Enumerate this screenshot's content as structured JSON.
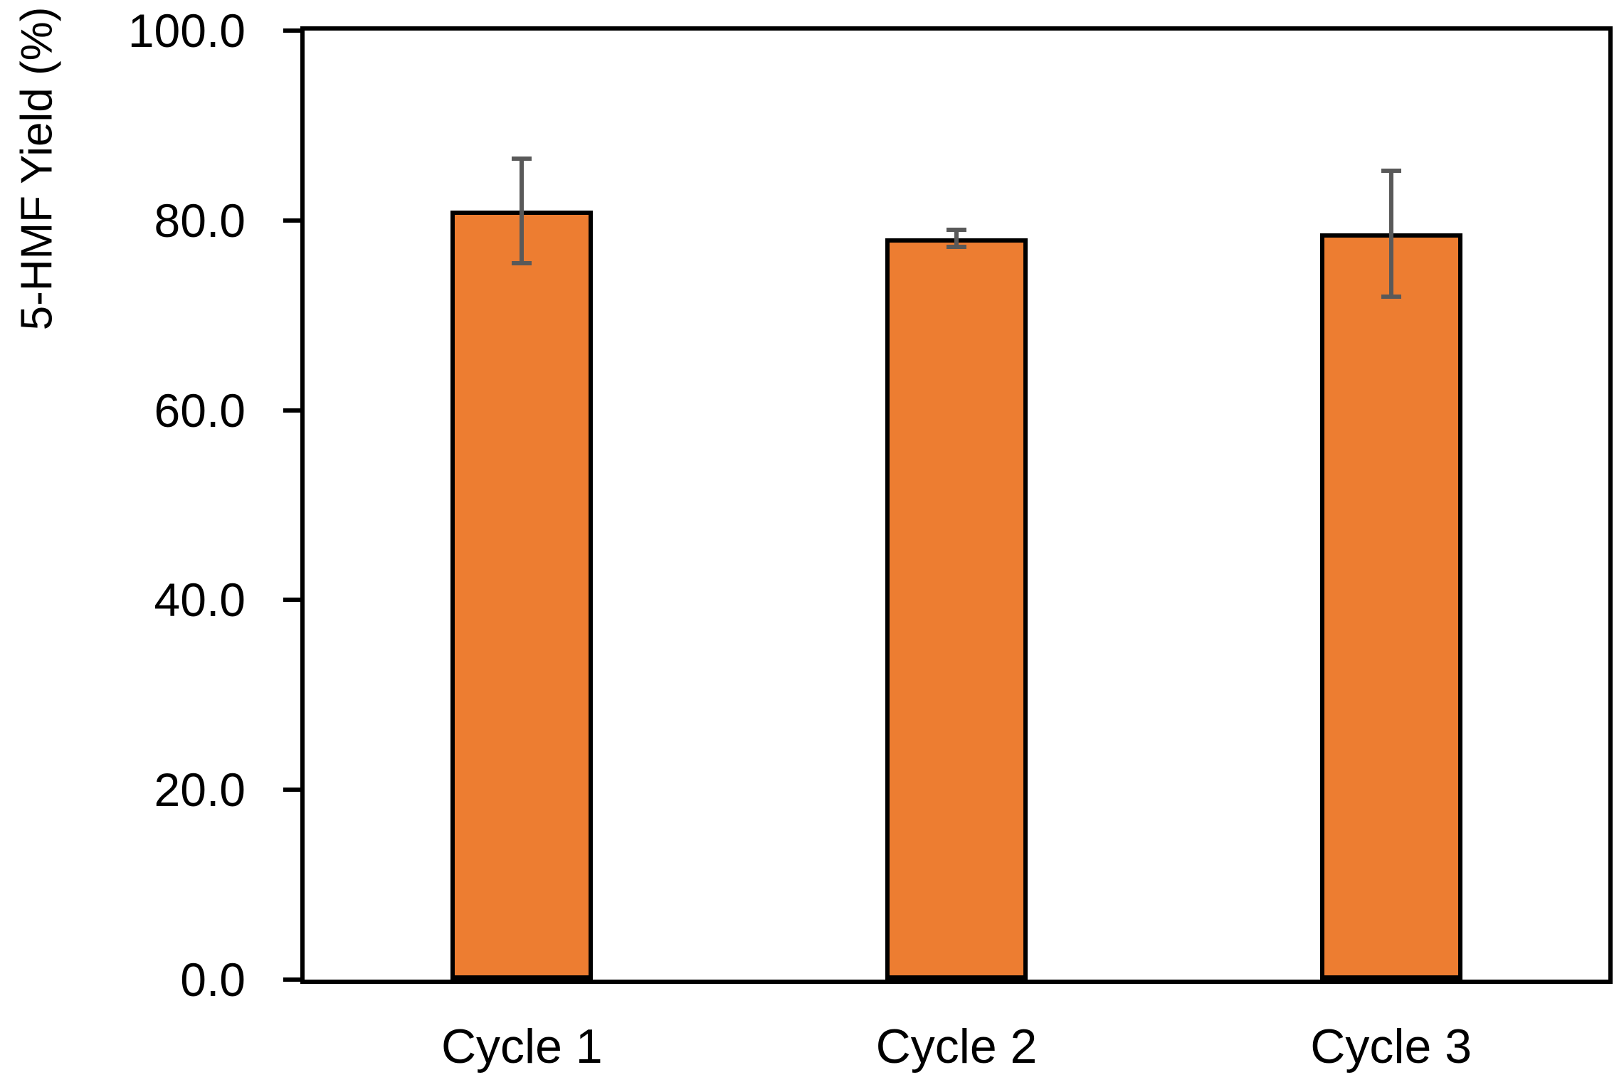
{
  "chart_data": {
    "type": "bar",
    "title": "",
    "xlabel": "",
    "ylabel": "5-HMF Yield (%)",
    "categories": [
      "Cycle 1",
      "Cycle 2",
      "Cycle 3"
    ],
    "values": [
      81.0,
      78.1,
      78.6
    ],
    "error_bars": [
      5.5,
      0.9,
      6.6
    ],
    "ylim": [
      0,
      100
    ],
    "ytick_interval": 20,
    "ytick_labels": [
      "0.0",
      "20.0",
      "40.0",
      "60.0",
      "80.0",
      "100.0"
    ],
    "grid": false,
    "legend": "none",
    "colors": {
      "bar_fill": "#ED7D31",
      "bar_border": "#000000",
      "error_bar": "#595959",
      "axis": "#000000",
      "background": "#FFFFFF",
      "text": "#000000"
    }
  }
}
